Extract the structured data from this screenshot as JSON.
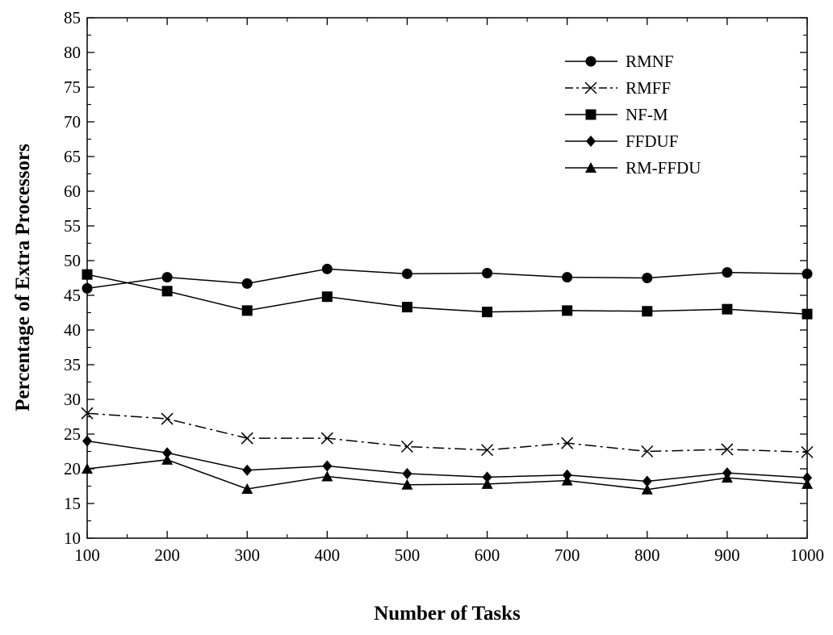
{
  "chart_data": {
    "type": "line",
    "title": "",
    "xlabel": "Number of Tasks",
    "ylabel": "Percentage of Extra Processors",
    "x": [
      100,
      200,
      300,
      400,
      500,
      600,
      700,
      800,
      900,
      1000
    ],
    "xlim": [
      100,
      1000
    ],
    "ylim": [
      10,
      85
    ],
    "xticks": [
      "100",
      "200",
      "300",
      "400",
      "500",
      "600",
      "700",
      "800",
      "900",
      "1000"
    ],
    "yticks": [
      "10",
      "15",
      "20",
      "25",
      "30",
      "35",
      "40",
      "45",
      "50",
      "55",
      "60",
      "65",
      "70",
      "75",
      "80",
      "85"
    ],
    "grid": false,
    "legend_position": "top-right",
    "series": [
      {
        "name": "RMNF",
        "marker": "circle",
        "dash": "solid",
        "values": [
          46,
          47.6,
          46.7,
          48.8,
          48.1,
          48.2,
          47.6,
          47.5,
          48.3,
          48.1
        ]
      },
      {
        "name": "RMFF",
        "marker": "cross",
        "dash": "dash-dot",
        "values": [
          28,
          27.2,
          24.4,
          24.4,
          23.2,
          22.7,
          23.7,
          22.5,
          22.8,
          22.4
        ]
      },
      {
        "name": "NF-M",
        "marker": "square",
        "dash": "solid",
        "values": [
          48,
          45.6,
          42.8,
          44.8,
          43.3,
          42.6,
          42.8,
          42.7,
          43.0,
          42.3
        ]
      },
      {
        "name": "FFDUF",
        "marker": "diamond",
        "dash": "solid",
        "values": [
          24,
          22.3,
          19.8,
          20.4,
          19.3,
          18.8,
          19.1,
          18.2,
          19.4,
          18.7
        ]
      },
      {
        "name": "RM-FFDU",
        "marker": "triangle",
        "dash": "solid",
        "values": [
          20,
          21.3,
          17.1,
          18.9,
          17.7,
          17.8,
          18.3,
          17.0,
          18.7,
          17.8
        ]
      }
    ]
  }
}
